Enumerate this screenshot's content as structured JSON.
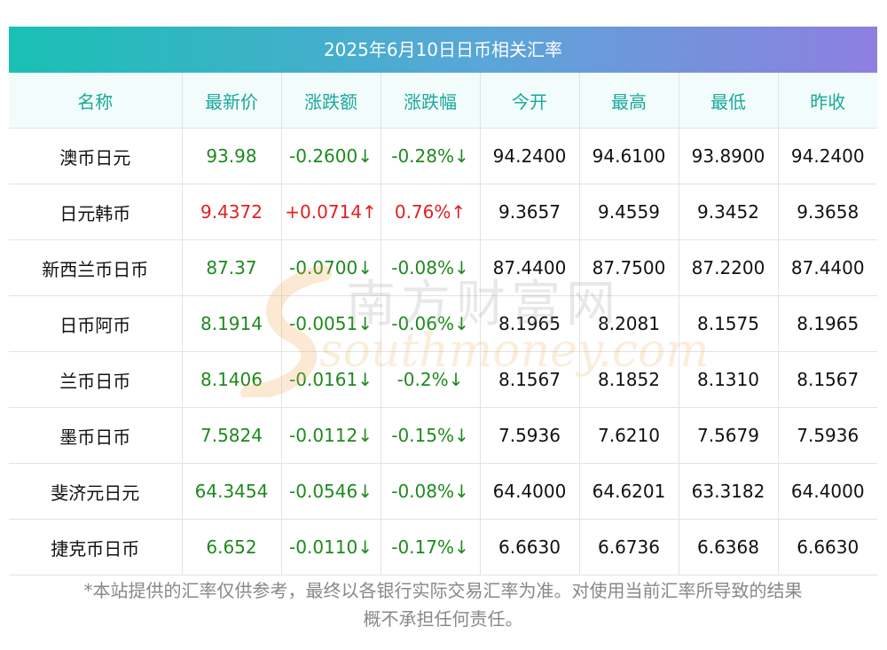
{
  "title": "2025年6月10日日币相关汇率",
  "headers": [
    "名称",
    "最新价",
    "涨跌额",
    "涨跌幅",
    "今开",
    "最高",
    "最低",
    "昨收"
  ],
  "rows": [
    {
      "name": "澳币日元",
      "price": "93.98",
      "change": "-0.2600↓",
      "pct": "-0.28%↓",
      "open": "94.2400",
      "high": "94.6100",
      "low": "93.8900",
      "prev": "94.2400",
      "trend": "down"
    },
    {
      "name": "日元韩币",
      "price": "9.4372",
      "change": "+0.0714↑",
      "pct": "0.76%↑",
      "open": "9.3657",
      "high": "9.4559",
      "low": "9.3452",
      "prev": "9.3658",
      "trend": "up"
    },
    {
      "name": "新西兰币日币",
      "price": "87.37",
      "change": "-0.0700↓",
      "pct": "-0.08%↓",
      "open": "87.4400",
      "high": "87.7500",
      "low": "87.2200",
      "prev": "87.4400",
      "trend": "down"
    },
    {
      "name": "日币阿币",
      "price": "8.1914",
      "change": "-0.0051↓",
      "pct": "-0.06%↓",
      "open": "8.1965",
      "high": "8.2081",
      "low": "8.1575",
      "prev": "8.1965",
      "trend": "down"
    },
    {
      "name": "兰币日币",
      "price": "8.1406",
      "change": "-0.0161↓",
      "pct": "-0.2%↓",
      "open": "8.1567",
      "high": "8.1852",
      "low": "8.1310",
      "prev": "8.1567",
      "trend": "down"
    },
    {
      "name": "墨币日币",
      "price": "7.5824",
      "change": "-0.0112↓",
      "pct": "-0.15%↓",
      "open": "7.5936",
      "high": "7.6210",
      "low": "7.5679",
      "prev": "7.5936",
      "trend": "down"
    },
    {
      "name": "斐济元日元",
      "price": "64.3454",
      "change": "-0.0546↓",
      "pct": "-0.08%↓",
      "open": "64.4000",
      "high": "64.6201",
      "low": "63.3182",
      "prev": "64.4000",
      "trend": "down"
    },
    {
      "name": "捷克币日币",
      "price": "6.652",
      "change": "-0.0110↓",
      "pct": "-0.17%↓",
      "open": "6.6630",
      "high": "6.6736",
      "low": "6.6368",
      "prev": "6.6630",
      "trend": "down"
    }
  ],
  "colors": {
    "up": "#e02020",
    "down": "#1e8a1e",
    "header_text": "#1aa89b"
  },
  "watermark": {
    "cn": "南方财富网",
    "en": "southmoney.com"
  },
  "footnote_lines": [
    "*本站提供的汇率仅供参考，最终以各银行实际交易汇率为准。对使用当前汇率所导致的结果",
    "概不承担任何责任。"
  ]
}
